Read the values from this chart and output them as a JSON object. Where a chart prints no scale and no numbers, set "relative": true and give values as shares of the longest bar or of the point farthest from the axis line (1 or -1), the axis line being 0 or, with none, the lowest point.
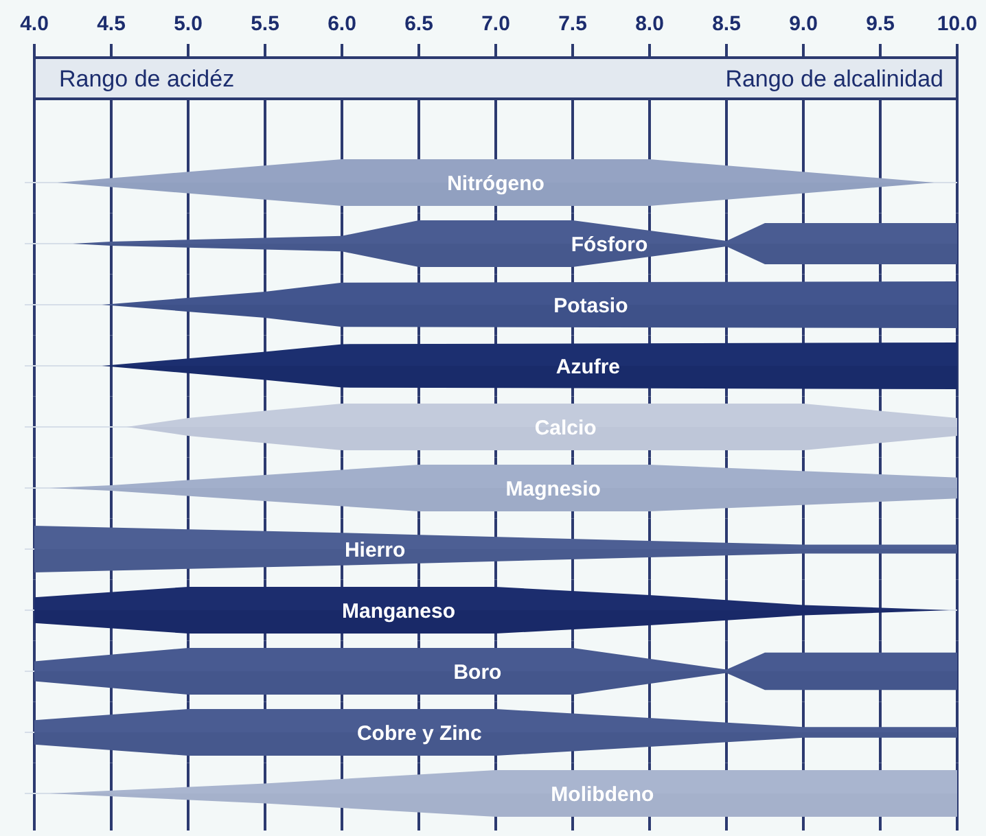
{
  "chart_data": [
    {
      "type": "area",
      "relative": true,
      "xlim": [
        4,
        10
      ],
      "xticks": [
        {
          "value": 4,
          "label": "4.0"
        },
        {
          "value": 4.5,
          "label": "4.5"
        },
        {
          "value": 5,
          "label": "5.0"
        },
        {
          "value": 5.5,
          "label": "5.5"
        },
        {
          "value": 6,
          "label": "6.0"
        },
        {
          "value": 6.5,
          "label": "6.5"
        },
        {
          "value": 7,
          "label": "7.0"
        },
        {
          "value": 7.5,
          "label": "7.5"
        },
        {
          "value": 8,
          "label": "8.0"
        },
        {
          "value": 8.5,
          "label": "8.5"
        },
        {
          "value": 9,
          "label": "9.0"
        },
        {
          "value": 9.5,
          "label": "9.5"
        },
        {
          "value": 10,
          "label": "10.0"
        }
      ],
      "grid": "x",
      "tick_labels": "x",
      "annotations": [
        "Rango de acidéz",
        "Rango de alcalinidad"
      ],
      "series": [
        {
          "name": "Nitrógeno",
          "color": "#95a3c3",
          "x": [
            4.15,
            4.5,
            6,
            8,
            9.5,
            9.85
          ],
          "values": [
            0,
            0.19,
            1,
            1,
            0.19,
            0
          ]
        },
        {
          "color": "#91a0c0",
          "x": [
            4.15,
            4.5,
            6,
            8,
            9.5,
            9.85
          ],
          "values": [
            0,
            -0.19,
            -1,
            -1,
            -0.19,
            0
          ]
        }
      ]
    },
    {
      "type": "area",
      "relative": true,
      "xlim": [
        4,
        10
      ],
      "xticks": [
        4,
        4.5,
        5,
        5.5,
        6,
        6.5,
        7,
        7.5,
        8,
        8.5,
        9,
        9.5,
        10
      ],
      "grid": "x",
      "tick_labels": false,
      "series": [
        {
          "name": "Fósforo",
          "color": "#4a5c92",
          "x": [
            4.25,
            4.5,
            6,
            6.5,
            7.5,
            8.5,
            8.75,
            10
          ],
          "values": [
            0,
            0.09,
            0.33,
            1,
            1,
            0.12,
            0.88,
            0.88
          ]
        },
        {
          "color": "#46588d",
          "x": [
            4.25,
            4.5,
            6,
            6.5,
            7.5,
            8.5,
            8.75,
            10
          ],
          "values": [
            0,
            -0.09,
            -0.33,
            -1,
            -1,
            -0.12,
            -0.88,
            -0.88
          ]
        }
      ]
    },
    {
      "type": "area",
      "relative": true,
      "xlim": [
        4,
        10
      ],
      "xticks": [
        4,
        4.5,
        5,
        5.5,
        6,
        6.5,
        7,
        7.5,
        8,
        8.5,
        9,
        9.5,
        10
      ],
      "grid": "x",
      "tick_labels": false,
      "series": [
        {
          "name": "Potasio",
          "color": "#42558e",
          "x": [
            4.44,
            5.5,
            6,
            10
          ],
          "values": [
            0,
            0.56,
            0.95,
            1
          ]
        },
        {
          "color": "#3e5189",
          "x": [
            4.44,
            5.5,
            6,
            10
          ],
          "values": [
            0,
            -0.56,
            -0.95,
            -1
          ]
        }
      ]
    },
    {
      "type": "area",
      "relative": true,
      "xlim": [
        4,
        10
      ],
      "xticks": [
        4,
        4.5,
        5,
        5.5,
        6,
        6.5,
        7,
        7.5,
        8,
        8.5,
        9,
        9.5,
        10
      ],
      "grid": "x",
      "tick_labels": false,
      "series": [
        {
          "name": "Azufre",
          "color": "#1c2f70",
          "x": [
            4.44,
            5.5,
            6,
            10
          ],
          "values": [
            0,
            0.6,
            0.93,
            1
          ]
        },
        {
          "color": "#192b6a",
          "x": [
            4.44,
            5.5,
            6,
            10
          ],
          "values": [
            0,
            -0.6,
            -0.93,
            -1
          ]
        }
      ]
    },
    {
      "type": "area",
      "relative": true,
      "xlim": [
        4,
        10
      ],
      "xticks": [
        4,
        4.5,
        5,
        5.5,
        6,
        6.5,
        7,
        7.5,
        8,
        8.5,
        9,
        9.5,
        10
      ],
      "grid": "x",
      "tick_labels": false,
      "series": [
        {
          "name": "Calcio",
          "color": "#c3cbdc",
          "x": [
            4.6,
            5,
            6,
            9,
            10
          ],
          "values": [
            0,
            0.38,
            1,
            1,
            0.38
          ]
        },
        {
          "color": "#bec6d8",
          "x": [
            4.6,
            5,
            6,
            9,
            10
          ],
          "values": [
            0,
            -0.38,
            -1,
            -1,
            -0.38
          ]
        }
      ]
    },
    {
      "type": "area",
      "relative": true,
      "xlim": [
        4,
        10
      ],
      "xticks": [
        4,
        4.5,
        5,
        5.5,
        6,
        6.5,
        7,
        7.5,
        8,
        8.5,
        9,
        9.5,
        10
      ],
      "grid": "x",
      "tick_labels": false,
      "series": [
        {
          "name": "Magnesio",
          "color": "#a2afcb",
          "x": [
            4.1,
            4.5,
            6.5,
            8,
            10
          ],
          "values": [
            0,
            0.12,
            1,
            1,
            0.45
          ]
        },
        {
          "color": "#9eabc7",
          "x": [
            4.1,
            4.5,
            6.5,
            8,
            10
          ],
          "values": [
            0,
            -0.12,
            -1,
            -1,
            -0.45
          ]
        }
      ]
    },
    {
      "type": "area",
      "relative": true,
      "xlim": [
        4,
        10
      ],
      "xticks": [
        4,
        4.5,
        5,
        5.5,
        6,
        6.5,
        7,
        7.5,
        8,
        8.5,
        9,
        9.5,
        10
      ],
      "grid": "x",
      "tick_labels": false,
      "series": [
        {
          "name": "Hierro",
          "color": "#4d5f94",
          "x": [
            4,
            6,
            8,
            9,
            10
          ],
          "values": [
            1,
            0.7,
            0.35,
            0.19,
            0.19
          ]
        },
        {
          "color": "#495b8f",
          "x": [
            4,
            6,
            8,
            9,
            10
          ],
          "values": [
            -1,
            -0.7,
            -0.35,
            -0.19,
            -0.19
          ]
        }
      ]
    },
    {
      "type": "area",
      "relative": true,
      "xlim": [
        4,
        10
      ],
      "xticks": [
        4,
        4.5,
        5,
        5.5,
        6,
        6.5,
        7,
        7.5,
        8,
        8.5,
        9,
        9.5,
        10
      ],
      "grid": "x",
      "tick_labels": false,
      "series": [
        {
          "name": "Manganeso",
          "color": "#1c2d6e",
          "x": [
            4,
            5,
            7,
            8,
            9,
            9.95
          ],
          "values": [
            0.55,
            1,
            1,
            0.65,
            0.22,
            0
          ]
        },
        {
          "color": "#192968",
          "x": [
            4,
            5,
            7,
            8,
            9,
            9.95
          ],
          "values": [
            -0.55,
            -1,
            -1,
            -0.65,
            -0.22,
            0
          ]
        }
      ]
    },
    {
      "type": "area",
      "relative": true,
      "xlim": [
        4,
        10
      ],
      "xticks": [
        4,
        4.5,
        5,
        5.5,
        6,
        6.5,
        7,
        7.5,
        8,
        8.5,
        9,
        9.5,
        10
      ],
      "grid": "x",
      "tick_labels": false,
      "series": [
        {
          "name": "Boro",
          "color": "#485a91",
          "x": [
            4,
            5,
            7.5,
            8.5,
            8.75,
            10
          ],
          "values": [
            0.43,
            1,
            1,
            0.07,
            0.8,
            0.8
          ]
        },
        {
          "color": "#44568c",
          "x": [
            4,
            5,
            7.5,
            8.5,
            8.75,
            10
          ],
          "values": [
            -0.43,
            -1,
            -1,
            -0.07,
            -0.8,
            -0.8
          ]
        }
      ]
    },
    {
      "type": "area",
      "relative": true,
      "xlim": [
        4,
        10
      ],
      "xticks": [
        4,
        4.5,
        5,
        5.5,
        6,
        6.5,
        7,
        7.5,
        8,
        8.5,
        9,
        9.5,
        10
      ],
      "grid": "x",
      "tick_labels": false,
      "series": [
        {
          "name": "Cobre y Zinc",
          "color": "#4a5c92",
          "x": [
            4,
            5,
            7,
            9,
            10
          ],
          "values": [
            0.52,
            1,
            1,
            0.23,
            0.23
          ]
        },
        {
          "color": "#46588d",
          "x": [
            4,
            5,
            7,
            9,
            10
          ],
          "values": [
            -0.52,
            -1,
            -1,
            -0.23,
            -0.23
          ]
        }
      ]
    },
    {
      "type": "area",
      "relative": true,
      "xlim": [
        4,
        10
      ],
      "xticks": [
        4,
        4.5,
        5,
        5.5,
        6,
        6.5,
        7,
        7.5,
        8,
        8.5,
        9,
        9.5,
        10
      ],
      "grid": "x",
      "tick_labels": false,
      "series": [
        {
          "name": "Molibdeno",
          "color": "#a9b5cf",
          "x": [
            4.1,
            5.5,
            7,
            10
          ],
          "values": [
            0,
            0.43,
            1,
            1
          ]
        },
        {
          "color": "#a5b1cb",
          "x": [
            4.1,
            5.5,
            7,
            10
          ],
          "values": [
            0,
            -0.43,
            -1,
            -1
          ]
        }
      ]
    }
  ]
}
